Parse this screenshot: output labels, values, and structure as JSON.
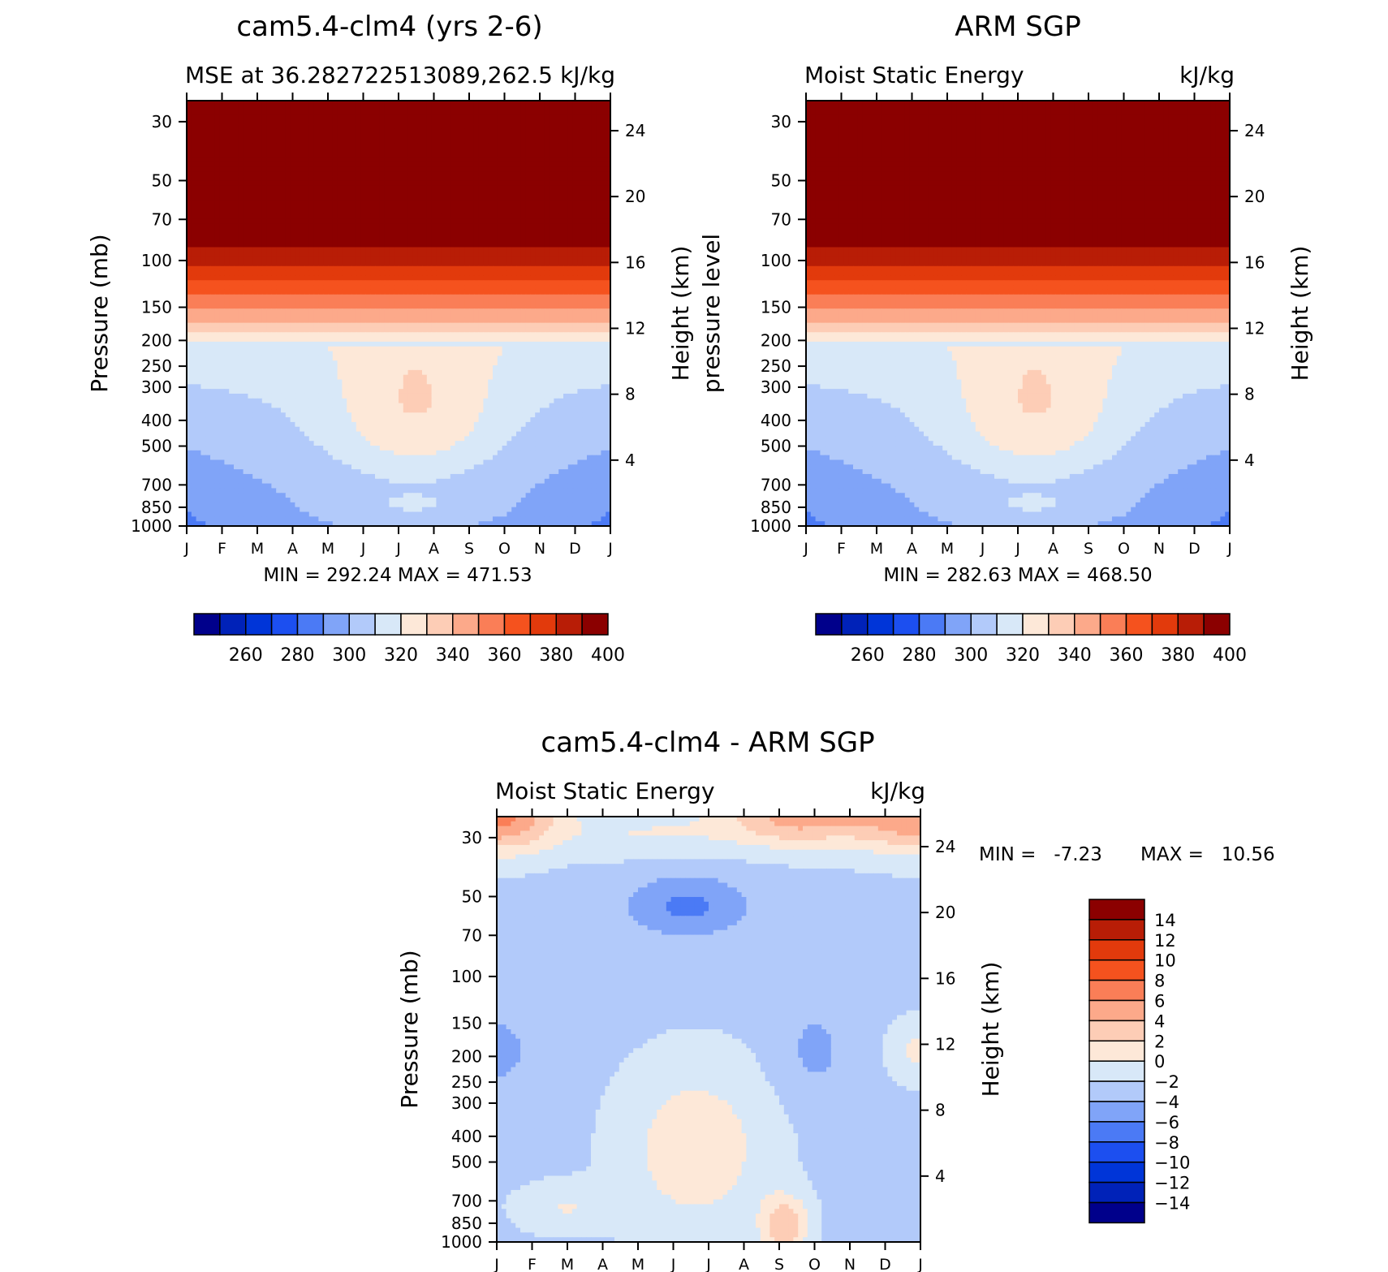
{
  "chart_data": [
    {
      "type": "heatmap",
      "title": "cam5.4-clm4 (yrs 2-6)",
      "left_label": "MSE at 36.282722513089,262.5",
      "right_label": "kJ/kg",
      "ylabel": "Pressure (mb)",
      "ylabel_right": "Height (km)",
      "x": [
        "J",
        "F",
        "M",
        "A",
        "M",
        "J",
        "J",
        "A",
        "S",
        "O",
        "N",
        "D",
        "J"
      ],
      "y_ticks": [
        "30",
        "50",
        "70",
        "100",
        "150",
        "200",
        "250",
        "300",
        "400",
        "500",
        "700",
        "850",
        "1000"
      ],
      "y_right_ticks": [
        "24",
        "20",
        "16",
        "12",
        "8",
        "4"
      ],
      "ylim": [
        1000,
        25
      ],
      "stats": "MIN =  292.24  MAX =  471.53",
      "colorbar": {
        "orientation": "horizontal",
        "levels": [
          250,
          260,
          270,
          280,
          290,
          300,
          310,
          320,
          330,
          340,
          350,
          360,
          370,
          380,
          390,
          400
        ],
        "labels": [
          "260",
          "280",
          "300",
          "320",
          "340",
          "360",
          "380",
          "400"
        ]
      },
      "field_hint": {
        "top_level_mb": 60,
        "missing_bottom_band": true
      }
    },
    {
      "type": "heatmap",
      "title": "ARM SGP",
      "left_label": "Moist Static Energy",
      "right_label": "kJ/kg",
      "ylabel": "pressure level",
      "ylabel_right": "Height (km)",
      "x": [
        "J",
        "F",
        "M",
        "A",
        "M",
        "J",
        "J",
        "A",
        "S",
        "O",
        "N",
        "D",
        "J"
      ],
      "y_ticks": [
        "30",
        "50",
        "70",
        "100",
        "150",
        "200",
        "250",
        "300",
        "400",
        "500",
        "700",
        "850",
        "1000"
      ],
      "y_right_ticks": [
        "24",
        "20",
        "16",
        "12",
        "8",
        "4"
      ],
      "ylim": [
        1000,
        25
      ],
      "stats": "MIN =  282.63  MAX =  468.50",
      "colorbar": {
        "orientation": "horizontal",
        "levels": [
          250,
          260,
          270,
          280,
          290,
          300,
          310,
          320,
          330,
          340,
          350,
          360,
          370,
          380,
          390,
          400
        ],
        "labels": [
          "260",
          "280",
          "300",
          "320",
          "340",
          "360",
          "380",
          "400"
        ]
      }
    },
    {
      "type": "heatmap",
      "title": "cam5.4-clm4 - ARM SGP",
      "left_label": "Moist Static Energy",
      "right_label": "kJ/kg",
      "ylabel": "Pressure (mb)",
      "ylabel_right": "Height (km)",
      "x": [
        "J",
        "F",
        "M",
        "A",
        "M",
        "J",
        "J",
        "A",
        "S",
        "O",
        "N",
        "D",
        "J"
      ],
      "y_ticks": [
        "30",
        "50",
        "70",
        "100",
        "150",
        "200",
        "250",
        "300",
        "400",
        "500",
        "700",
        "850",
        "1000"
      ],
      "y_right_ticks": [
        "24",
        "20",
        "16",
        "12",
        "8",
        "4"
      ],
      "ylim": [
        1000,
        25
      ],
      "stats_min": "MIN =   -7.23",
      "stats_max": "MAX =   10.56",
      "colorbar": {
        "orientation": "vertical",
        "levels": [
          -16,
          -14,
          -12,
          -10,
          -8,
          -6,
          -4,
          -2,
          0,
          2,
          4,
          6,
          8,
          10,
          12,
          14,
          16
        ],
        "labels": [
          "14",
          "12",
          "10",
          "8",
          "6",
          "4",
          "2",
          "0",
          "−2",
          "−4",
          "−6",
          "−8",
          "−10",
          "−12",
          "−14"
        ]
      }
    }
  ],
  "palette": [
    "#00008b",
    "#0022b8",
    "#0035d8",
    "#1c4ff0",
    "#4b7af5",
    "#80a4f8",
    "#b2cafa",
    "#d8e8f8",
    "#fde8d8",
    "#fdcdb6",
    "#fca98a",
    "#fa7e57",
    "#f5521e",
    "#e23a0c",
    "#b81d06",
    "#8b0000"
  ]
}
